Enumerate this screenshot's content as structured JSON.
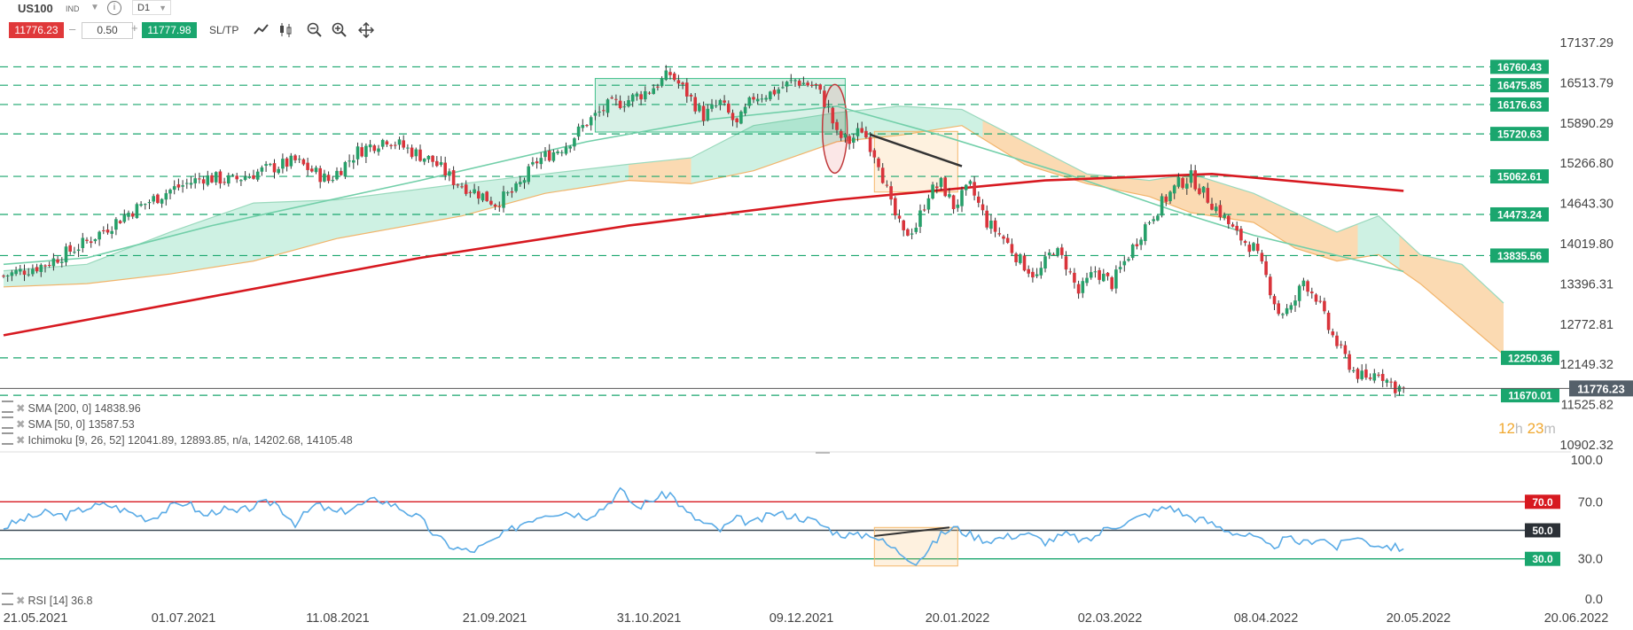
{
  "toolbar": {
    "symbol": "US100",
    "symbol_type": "IND",
    "info_icon": "info-icon",
    "period": "D1",
    "sell_price": "11776.23",
    "lot": "0.50",
    "buy_price": "11777.98",
    "sltp_label": "SL/TP",
    "minus": "–",
    "plus": "+",
    "icons": [
      "line-chart-icon",
      "candle-chart-icon",
      "zoom-out-icon",
      "zoom-in-icon",
      "move-crosshair-icon"
    ]
  },
  "colors": {
    "bull": "#27a06a",
    "bear": "#d9343b",
    "sma200": "#d71920",
    "sma50": "#72cfa9",
    "level": "#1aa66e",
    "cloud_green": "#c9efe0",
    "cloud_orange": "#fbd6aa",
    "rsi": "#5aabe6",
    "rsi70": "#d71920",
    "rsi50": "#3c4a55",
    "rsi30": "#1aa66e"
  },
  "legend": {
    "sma200": "SMA [200, 0] 14838.96",
    "sma50": "SMA [50, 0] 13587.53",
    "ichimoku": "Ichimoku [9, 26, 52] 12041.89, 12893.85, n/a, 14202.68, 14105.48",
    "rsi": "RSI [14] 36.8"
  },
  "countdown": {
    "hours": "12",
    "h_unit": "h",
    "minutes": "23",
    "m_unit": "m"
  },
  "chart_data": [
    {
      "type": "candlestick",
      "symbol": "US100",
      "timeframe": "D1",
      "price_axis_ticks": [
        "17137.29",
        "16513.79",
        "15890.29",
        "15266.80",
        "14643.30",
        "14019.80",
        "13396.31",
        "12772.81",
        "12149.32",
        "11525.82",
        "10902.32"
      ],
      "date_axis_ticks": [
        "21.05.2021",
        "01.07.2021",
        "11.08.2021",
        "21.09.2021",
        "31.10.2021",
        "09.12.2021",
        "20.01.2022",
        "02.03.2022",
        "08.04.2022",
        "20.05.2022",
        "20.06.2022"
      ],
      "horizontal_levels": [
        "16760.43",
        "16475.85",
        "16176.63",
        "15720.63",
        "15062.61",
        "14473.24",
        "13835.56",
        "12250.36",
        "11670.01"
      ],
      "current_price": "11776.23",
      "close_path": [
        [
          0,
          13520
        ],
        [
          10,
          13700
        ],
        [
          20,
          14050
        ],
        [
          30,
          14500
        ],
        [
          40,
          14850
        ],
        [
          48,
          15050
        ],
        [
          55,
          15000
        ],
        [
          62,
          15150
        ],
        [
          70,
          15300
        ],
        [
          78,
          15000
        ],
        [
          85,
          15450
        ],
        [
          92,
          15650
        ],
        [
          98,
          15450
        ],
        [
          103,
          15300
        ],
        [
          108,
          15000
        ],
        [
          114,
          14800
        ],
        [
          118,
          14650
        ],
        [
          123,
          14850
        ],
        [
          128,
          15300
        ],
        [
          135,
          15550
        ],
        [
          140,
          15900
        ],
        [
          145,
          16150
        ],
        [
          150,
          16250
        ],
        [
          155,
          16400
        ],
        [
          160,
          16650
        ],
        [
          164,
          16350
        ],
        [
          168,
          16000
        ],
        [
          172,
          16200
        ],
        [
          176,
          15850
        ],
        [
          180,
          16300
        ],
        [
          184,
          16350
        ],
        [
          190,
          16550
        ],
        [
          195,
          16450
        ],
        [
          198,
          16100
        ],
        [
          200,
          15700
        ],
        [
          203,
          15600
        ],
        [
          206,
          15800
        ],
        [
          210,
          15300
        ],
        [
          213,
          14600
        ],
        [
          216,
          14150
        ],
        [
          219,
          14300
        ],
        [
          222,
          14800
        ],
        [
          225,
          14950
        ],
        [
          228,
          14600
        ],
        [
          232,
          14900
        ],
        [
          236,
          14350
        ],
        [
          240,
          14100
        ],
        [
          244,
          13750
        ],
        [
          248,
          13500
        ],
        [
          252,
          13950
        ],
        [
          255,
          13700
        ],
        [
          258,
          13250
        ],
        [
          262,
          13600
        ],
        [
          266,
          13400
        ],
        [
          270,
          13850
        ],
        [
          274,
          14300
        ],
        [
          278,
          14650
        ],
        [
          282,
          14950
        ],
        [
          285,
          15050
        ],
        [
          288,
          14800
        ],
        [
          292,
          14500
        ],
        [
          296,
          14150
        ],
        [
          300,
          13950
        ],
        [
          303,
          13500
        ],
        [
          306,
          12950
        ],
        [
          309,
          13000
        ],
        [
          312,
          13450
        ],
        [
          315,
          13200
        ],
        [
          318,
          12700
        ],
        [
          321,
          12350
        ],
        [
          324,
          12050
        ],
        [
          327,
          11900
        ],
        [
          330,
          12050
        ],
        [
          332,
          11900
        ],
        [
          334,
          11800
        ],
        [
          336,
          11776
        ]
      ],
      "sma200": [
        [
          0,
          12600
        ],
        [
          50,
          13200
        ],
        [
          100,
          13800
        ],
        [
          150,
          14300
        ],
        [
          200,
          14700
        ],
        [
          250,
          15000
        ],
        [
          290,
          15100
        ],
        [
          336,
          14839
        ]
      ],
      "sma50": [
        [
          0,
          13700
        ],
        [
          20,
          13800
        ],
        [
          50,
          14300
        ],
        [
          100,
          15000
        ],
        [
          140,
          15600
        ],
        [
          170,
          15950
        ],
        [
          200,
          16150
        ],
        [
          225,
          15700
        ],
        [
          255,
          15100
        ],
        [
          280,
          14550
        ],
        [
          300,
          14150
        ],
        [
          336,
          13588
        ]
      ],
      "cloud_top": [
        [
          0,
          13600
        ],
        [
          20,
          13700
        ],
        [
          40,
          14200
        ],
        [
          60,
          14650
        ],
        [
          80,
          14700
        ],
        [
          110,
          14950
        ],
        [
          130,
          15100
        ],
        [
          150,
          15250
        ],
        [
          165,
          15350
        ],
        [
          180,
          15850
        ],
        [
          200,
          16050
        ],
        [
          215,
          16150
        ],
        [
          230,
          16100
        ],
        [
          245,
          15600
        ],
        [
          260,
          15100
        ],
        [
          275,
          15000
        ],
        [
          285,
          15100
        ],
        [
          300,
          14800
        ],
        [
          310,
          14500
        ],
        [
          320,
          14200
        ],
        [
          330,
          14450
        ],
        [
          340,
          13850
        ],
        [
          350,
          13700
        ],
        [
          360,
          13100
        ]
      ],
      "cloud_bottom": [
        [
          0,
          13350
        ],
        [
          20,
          13400
        ],
        [
          40,
          13550
        ],
        [
          60,
          13750
        ],
        [
          80,
          14100
        ],
        [
          110,
          14450
        ],
        [
          130,
          14800
        ],
        [
          150,
          15000
        ],
        [
          165,
          14950
        ],
        [
          180,
          15150
        ],
        [
          200,
          15600
        ],
        [
          215,
          15700
        ],
        [
          230,
          15850
        ],
        [
          245,
          15250
        ],
        [
          260,
          14950
        ],
        [
          275,
          14750
        ],
        [
          285,
          14500
        ],
        [
          300,
          14350
        ],
        [
          310,
          13950
        ],
        [
          320,
          13750
        ],
        [
          330,
          13850
        ],
        [
          340,
          13400
        ],
        [
          350,
          12850
        ],
        [
          360,
          12300
        ]
      ],
      "trend_line": [
        [
          208,
          15710
        ],
        [
          230,
          15220
        ]
      ],
      "highlight_zones": [
        {
          "name": "top-range",
          "x": [
            142,
            202
          ],
          "y": [
            15750,
            16580
          ],
          "color": "green"
        },
        {
          "name": "breakout-zone",
          "x": [
            209,
            229
          ],
          "y": [
            14820,
            15760
          ],
          "color": "orange"
        }
      ]
    },
    {
      "type": "line",
      "name": "RSI [14]",
      "axis_ticks": [
        "100.0",
        "70.0",
        "50.0",
        "30.0",
        "0.0"
      ],
      "levels": [
        "70.0",
        "50.0",
        "30.0"
      ],
      "current": 36.8,
      "values": [
        [
          0,
          52
        ],
        [
          5,
          58
        ],
        [
          10,
          62
        ],
        [
          15,
          60
        ],
        [
          20,
          66
        ],
        [
          25,
          68
        ],
        [
          30,
          63
        ],
        [
          35,
          58
        ],
        [
          40,
          66
        ],
        [
          44,
          70
        ],
        [
          48,
          60
        ],
        [
          52,
          65
        ],
        [
          56,
          62
        ],
        [
          60,
          67
        ],
        [
          65,
          70
        ],
        [
          70,
          55
        ],
        [
          75,
          68
        ],
        [
          80,
          62
        ],
        [
          85,
          67
        ],
        [
          90,
          72
        ],
        [
          95,
          66
        ],
        [
          100,
          58
        ],
        [
          104,
          45
        ],
        [
          108,
          38
        ],
        [
          112,
          35
        ],
        [
          116,
          40
        ],
        [
          120,
          47
        ],
        [
          125,
          56
        ],
        [
          130,
          62
        ],
        [
          135,
          63
        ],
        [
          140,
          60
        ],
        [
          144,
          66
        ],
        [
          148,
          78
        ],
        [
          152,
          66
        ],
        [
          156,
          72
        ],
        [
          160,
          76
        ],
        [
          164,
          62
        ],
        [
          168,
          55
        ],
        [
          172,
          50
        ],
        [
          176,
          58
        ],
        [
          180,
          55
        ],
        [
          185,
          62
        ],
        [
          190,
          60
        ],
        [
          195,
          56
        ],
        [
          200,
          48
        ],
        [
          205,
          46
        ],
        [
          208,
          48
        ],
        [
          212,
          40
        ],
        [
          216,
          33
        ],
        [
          219,
          28
        ],
        [
          222,
          36
        ],
        [
          225,
          47
        ],
        [
          228,
          52
        ],
        [
          232,
          47
        ],
        [
          236,
          43
        ],
        [
          240,
          45
        ],
        [
          245,
          48
        ],
        [
          250,
          42
        ],
        [
          255,
          47
        ],
        [
          260,
          42
        ],
        [
          265,
          52
        ],
        [
          270,
          56
        ],
        [
          275,
          62
        ],
        [
          280,
          67
        ],
        [
          284,
          60
        ],
        [
          288,
          57
        ],
        [
          292,
          52
        ],
        [
          296,
          48
        ],
        [
          300,
          45
        ],
        [
          304,
          38
        ],
        [
          308,
          44
        ],
        [
          312,
          41
        ],
        [
          316,
          45
        ],
        [
          320,
          38
        ],
        [
          324,
          46
        ],
        [
          328,
          41
        ],
        [
          332,
          39
        ],
        [
          336,
          37
        ]
      ],
      "trend_line": [
        [
          209,
          46
        ],
        [
          227,
          52
        ]
      ],
      "highlight_zone": {
        "x": [
          209,
          229
        ],
        "y": [
          25,
          52
        ],
        "color": "orange"
      }
    }
  ]
}
